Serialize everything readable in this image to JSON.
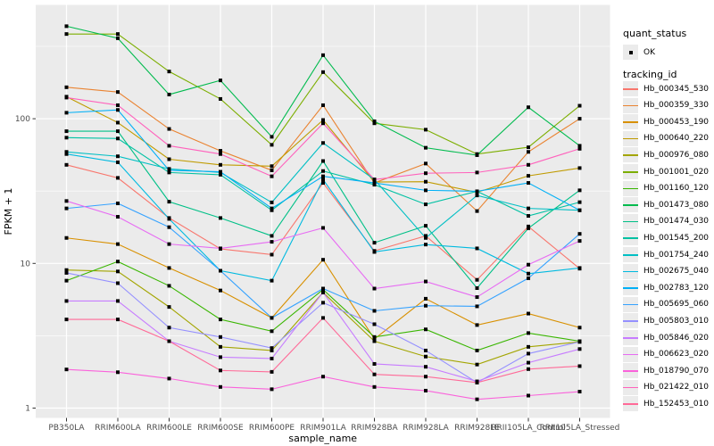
{
  "chart_data": {
    "type": "line",
    "title": "",
    "xlabel": "sample_name",
    "ylabel": "FPKM + 1",
    "yscale": "log10",
    "ylim": [
      1,
      460
    ],
    "y_ticks": [
      1,
      10,
      100
    ],
    "y_minor_ticks": [
      3.162,
      31.62,
      316.2
    ],
    "grid": "on",
    "legend_position": "right",
    "legend_titles": {
      "quant": "quant_status",
      "tracking": "tracking_id"
    },
    "quant_status_ok_label": "OK",
    "panel_bg": "#EBEBEB",
    "grid_color": "#FFFFFF",
    "point_color": "#000000",
    "tick_color": "#333333",
    "tick_label_color": "#4D4D4D",
    "categories": [
      "PB350LA",
      "RRIM600LA",
      "RRIM600LE",
      "RRIM600SE",
      "RRIM600PE",
      "RRIM901LA",
      "RRIM928BA",
      "RRIM928LA",
      "RRIM928LE",
      "RRII105LA_Control",
      "RRII105LA_Stressed"
    ],
    "series": [
      {
        "name": "Hb_000345_530",
        "color": "#F8766D",
        "values": [
          48,
          39,
          20.6,
          12.6,
          11.5,
          36,
          12.2,
          15.5,
          7.7,
          18,
          9.2
        ]
      },
      {
        "name": "Hb_000359_330",
        "color": "#EA8331",
        "values": [
          165,
          153,
          85,
          60,
          44,
          124,
          36,
          49,
          23,
          59,
          100
        ]
      },
      {
        "name": "Hb_000453_190",
        "color": "#D89000",
        "values": [
          15,
          13.6,
          9.3,
          6.5,
          4.2,
          10.6,
          3.0,
          5.7,
          3.75,
          4.5,
          3.6
        ]
      },
      {
        "name": "Hb_000640_220",
        "color": "#C09B00",
        "values": [
          142,
          94,
          52.5,
          48,
          47,
          98,
          36.5,
          36.7,
          31,
          40.3,
          45.6
        ]
      },
      {
        "name": "Hb_000976_080",
        "color": "#A3A500",
        "values": [
          9.0,
          8.8,
          5.0,
          2.65,
          2.5,
          6.3,
          2.9,
          2.27,
          2.0,
          2.65,
          2.87
        ]
      },
      {
        "name": "Hb_001001_020",
        "color": "#7CAE00",
        "values": [
          385,
          385,
          212,
          137,
          66,
          210,
          93,
          84,
          57,
          63.5,
          123
        ]
      },
      {
        "name": "Hb_001160_120",
        "color": "#39B600",
        "values": [
          7.6,
          10.3,
          7.0,
          4.1,
          3.4,
          6.6,
          3.1,
          3.5,
          2.5,
          3.3,
          2.9
        ]
      },
      {
        "name": "Hb_001473_080",
        "color": "#00BB4E",
        "values": [
          436,
          360,
          147,
          184,
          75,
          275,
          96,
          63,
          56,
          120,
          65
        ]
      },
      {
        "name": "Hb_001474_030",
        "color": "#00C087",
        "values": [
          82,
          82,
          26.7,
          20.6,
          15.5,
          51,
          13.9,
          18.2,
          6.75,
          17.5,
          32
        ]
      },
      {
        "name": "Hb_001545_200",
        "color": "#00C1A3",
        "values": [
          74,
          73,
          42.5,
          41,
          23.3,
          43.5,
          35,
          25.6,
          31.5,
          21.3,
          26.5
        ]
      },
      {
        "name": "Hb_001754_240",
        "color": "#00BFC4",
        "values": [
          59,
          55,
          45,
          42.5,
          26.4,
          68,
          38,
          15.0,
          29.5,
          24,
          23.3
        ]
      },
      {
        "name": "Hb_002675_040",
        "color": "#00BAE0",
        "values": [
          57,
          50,
          20.3,
          8.9,
          7.6,
          38,
          12.0,
          13.5,
          12.7,
          8.5,
          9.3
        ]
      },
      {
        "name": "Hb_002783_120",
        "color": "#00B0F6",
        "values": [
          110,
          115,
          44,
          43,
          24,
          40,
          36,
          32,
          31.5,
          36,
          23.3
        ]
      },
      {
        "name": "Hb_005695_060",
        "color": "#35A2FF",
        "values": [
          24,
          26,
          17.8,
          8.9,
          4.2,
          6.7,
          4.7,
          5.1,
          5.05,
          7.9,
          16
        ]
      },
      {
        "name": "Hb_005803_010",
        "color": "#9590FF",
        "values": [
          8.6,
          7.3,
          3.6,
          3.1,
          2.6,
          5.35,
          3.8,
          2.5,
          1.5,
          2.38,
          2.87
        ]
      },
      {
        "name": "Hb_005846_020",
        "color": "#C77CFF",
        "values": [
          5.5,
          5.5,
          2.9,
          2.25,
          2.2,
          6.3,
          2.02,
          1.93,
          1.53,
          2.06,
          2.56
        ]
      },
      {
        "name": "Hb_006623_020",
        "color": "#E76BF3",
        "values": [
          27,
          21,
          13.6,
          12.7,
          14.1,
          17.6,
          6.7,
          7.5,
          5.85,
          9.8,
          14.3
        ]
      },
      {
        "name": "Hb_018790_070",
        "color": "#FA62DB",
        "values": [
          1.85,
          1.77,
          1.6,
          1.4,
          1.35,
          1.65,
          1.4,
          1.32,
          1.15,
          1.22,
          1.3
        ]
      },
      {
        "name": "Hb_021422_010",
        "color": "#FF62BC",
        "values": [
          140,
          124,
          65,
          57,
          40,
          93,
          38,
          42,
          42.5,
          48,
          62
        ]
      },
      {
        "name": "Hb_152453_010",
        "color": "#FF6A98",
        "values": [
          4.1,
          4.1,
          2.9,
          1.82,
          1.78,
          4.2,
          1.71,
          1.65,
          1.5,
          1.86,
          1.95
        ]
      }
    ]
  }
}
